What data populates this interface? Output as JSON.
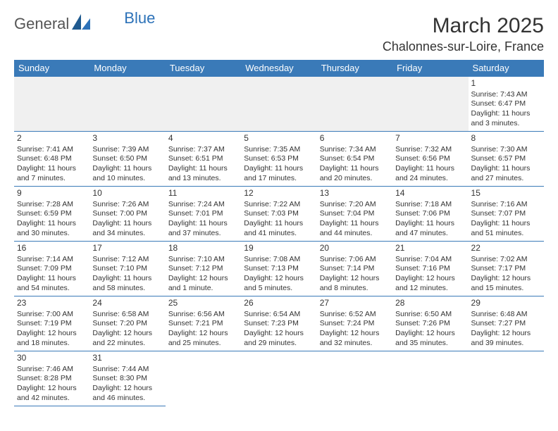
{
  "logo": {
    "general": "General",
    "blue": "Blue"
  },
  "title": "March 2025",
  "location": "Chalonnes-sur-Loire, France",
  "day_headers": [
    "Sunday",
    "Monday",
    "Tuesday",
    "Wednesday",
    "Thursday",
    "Friday",
    "Saturday"
  ],
  "colors": {
    "header_bg": "#3a7ab8",
    "header_text": "#ffffff",
    "border": "#3a7ab8",
    "empty_bg": "#efefef",
    "text": "#333333",
    "logo_blue": "#2d72b8"
  },
  "days": [
    {
      "n": "1",
      "sr": "Sunrise: 7:43 AM",
      "ss": "Sunset: 6:47 PM",
      "dl": "Daylight: 11 hours and 3 minutes."
    },
    {
      "n": "2",
      "sr": "Sunrise: 7:41 AM",
      "ss": "Sunset: 6:48 PM",
      "dl": "Daylight: 11 hours and 7 minutes."
    },
    {
      "n": "3",
      "sr": "Sunrise: 7:39 AM",
      "ss": "Sunset: 6:50 PM",
      "dl": "Daylight: 11 hours and 10 minutes."
    },
    {
      "n": "4",
      "sr": "Sunrise: 7:37 AM",
      "ss": "Sunset: 6:51 PM",
      "dl": "Daylight: 11 hours and 13 minutes."
    },
    {
      "n": "5",
      "sr": "Sunrise: 7:35 AM",
      "ss": "Sunset: 6:53 PM",
      "dl": "Daylight: 11 hours and 17 minutes."
    },
    {
      "n": "6",
      "sr": "Sunrise: 7:34 AM",
      "ss": "Sunset: 6:54 PM",
      "dl": "Daylight: 11 hours and 20 minutes."
    },
    {
      "n": "7",
      "sr": "Sunrise: 7:32 AM",
      "ss": "Sunset: 6:56 PM",
      "dl": "Daylight: 11 hours and 24 minutes."
    },
    {
      "n": "8",
      "sr": "Sunrise: 7:30 AM",
      "ss": "Sunset: 6:57 PM",
      "dl": "Daylight: 11 hours and 27 minutes."
    },
    {
      "n": "9",
      "sr": "Sunrise: 7:28 AM",
      "ss": "Sunset: 6:59 PM",
      "dl": "Daylight: 11 hours and 30 minutes."
    },
    {
      "n": "10",
      "sr": "Sunrise: 7:26 AM",
      "ss": "Sunset: 7:00 PM",
      "dl": "Daylight: 11 hours and 34 minutes."
    },
    {
      "n": "11",
      "sr": "Sunrise: 7:24 AM",
      "ss": "Sunset: 7:01 PM",
      "dl": "Daylight: 11 hours and 37 minutes."
    },
    {
      "n": "12",
      "sr": "Sunrise: 7:22 AM",
      "ss": "Sunset: 7:03 PM",
      "dl": "Daylight: 11 hours and 41 minutes."
    },
    {
      "n": "13",
      "sr": "Sunrise: 7:20 AM",
      "ss": "Sunset: 7:04 PM",
      "dl": "Daylight: 11 hours and 44 minutes."
    },
    {
      "n": "14",
      "sr": "Sunrise: 7:18 AM",
      "ss": "Sunset: 7:06 PM",
      "dl": "Daylight: 11 hours and 47 minutes."
    },
    {
      "n": "15",
      "sr": "Sunrise: 7:16 AM",
      "ss": "Sunset: 7:07 PM",
      "dl": "Daylight: 11 hours and 51 minutes."
    },
    {
      "n": "16",
      "sr": "Sunrise: 7:14 AM",
      "ss": "Sunset: 7:09 PM",
      "dl": "Daylight: 11 hours and 54 minutes."
    },
    {
      "n": "17",
      "sr": "Sunrise: 7:12 AM",
      "ss": "Sunset: 7:10 PM",
      "dl": "Daylight: 11 hours and 58 minutes."
    },
    {
      "n": "18",
      "sr": "Sunrise: 7:10 AM",
      "ss": "Sunset: 7:12 PM",
      "dl": "Daylight: 12 hours and 1 minute."
    },
    {
      "n": "19",
      "sr": "Sunrise: 7:08 AM",
      "ss": "Sunset: 7:13 PM",
      "dl": "Daylight: 12 hours and 5 minutes."
    },
    {
      "n": "20",
      "sr": "Sunrise: 7:06 AM",
      "ss": "Sunset: 7:14 PM",
      "dl": "Daylight: 12 hours and 8 minutes."
    },
    {
      "n": "21",
      "sr": "Sunrise: 7:04 AM",
      "ss": "Sunset: 7:16 PM",
      "dl": "Daylight: 12 hours and 12 minutes."
    },
    {
      "n": "22",
      "sr": "Sunrise: 7:02 AM",
      "ss": "Sunset: 7:17 PM",
      "dl": "Daylight: 12 hours and 15 minutes."
    },
    {
      "n": "23",
      "sr": "Sunrise: 7:00 AM",
      "ss": "Sunset: 7:19 PM",
      "dl": "Daylight: 12 hours and 18 minutes."
    },
    {
      "n": "24",
      "sr": "Sunrise: 6:58 AM",
      "ss": "Sunset: 7:20 PM",
      "dl": "Daylight: 12 hours and 22 minutes."
    },
    {
      "n": "25",
      "sr": "Sunrise: 6:56 AM",
      "ss": "Sunset: 7:21 PM",
      "dl": "Daylight: 12 hours and 25 minutes."
    },
    {
      "n": "26",
      "sr": "Sunrise: 6:54 AM",
      "ss": "Sunset: 7:23 PM",
      "dl": "Daylight: 12 hours and 29 minutes."
    },
    {
      "n": "27",
      "sr": "Sunrise: 6:52 AM",
      "ss": "Sunset: 7:24 PM",
      "dl": "Daylight: 12 hours and 32 minutes."
    },
    {
      "n": "28",
      "sr": "Sunrise: 6:50 AM",
      "ss": "Sunset: 7:26 PM",
      "dl": "Daylight: 12 hours and 35 minutes."
    },
    {
      "n": "29",
      "sr": "Sunrise: 6:48 AM",
      "ss": "Sunset: 7:27 PM",
      "dl": "Daylight: 12 hours and 39 minutes."
    },
    {
      "n": "30",
      "sr": "Sunrise: 7:46 AM",
      "ss": "Sunset: 8:28 PM",
      "dl": "Daylight: 12 hours and 42 minutes."
    },
    {
      "n": "31",
      "sr": "Sunrise: 7:44 AM",
      "ss": "Sunset: 8:30 PM",
      "dl": "Daylight: 12 hours and 46 minutes."
    }
  ]
}
